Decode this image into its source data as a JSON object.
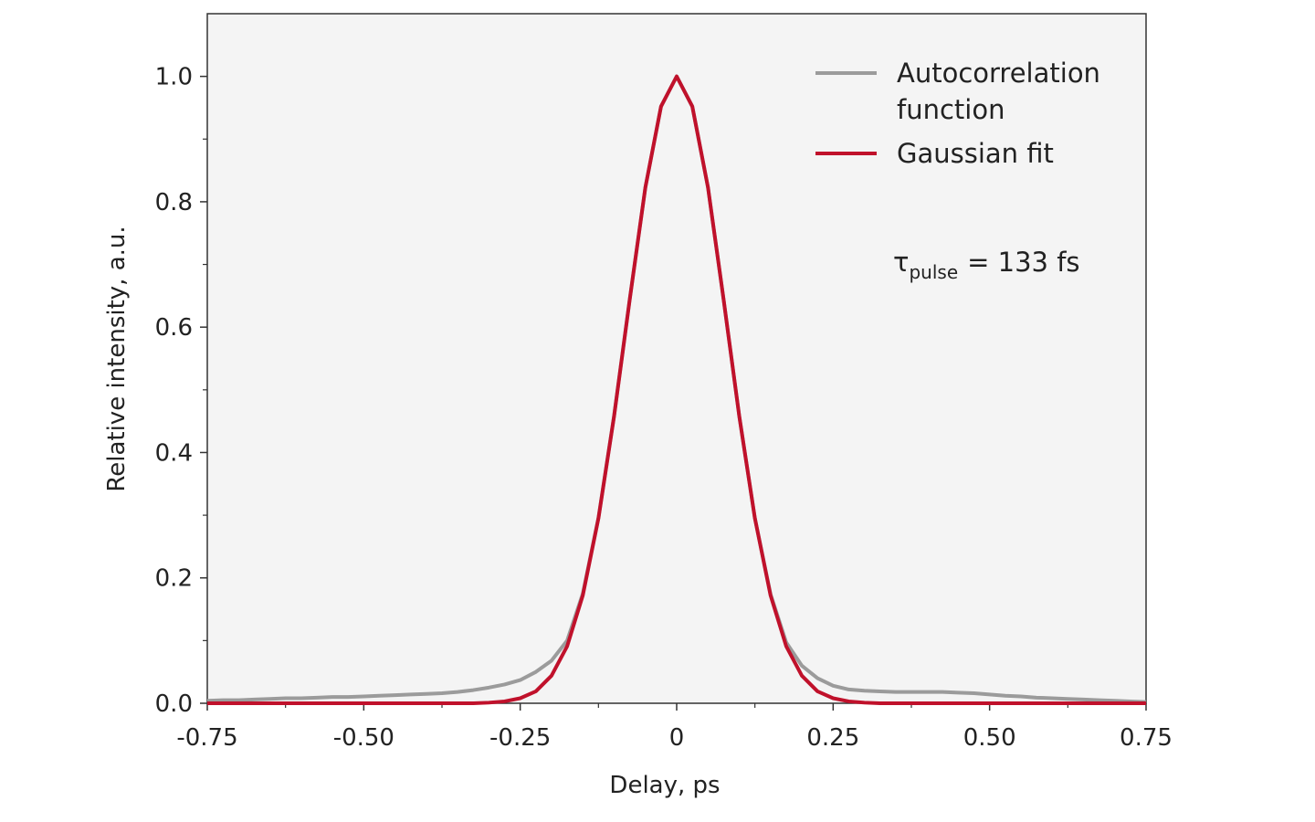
{
  "chart_data": {
    "type": "line",
    "xlabel": "Delay, ps",
    "ylabel": "Relative intensity, a.u.",
    "x": [
      -0.75,
      -0.725,
      -0.7,
      -0.675,
      -0.65,
      -0.625,
      -0.6,
      -0.575,
      -0.55,
      -0.525,
      -0.5,
      -0.475,
      -0.45,
      -0.425,
      -0.4,
      -0.375,
      -0.35,
      -0.325,
      -0.3,
      -0.275,
      -0.25,
      -0.225,
      -0.2,
      -0.175,
      -0.15,
      -0.125,
      -0.1,
      -0.075,
      -0.05,
      -0.025,
      0,
      0.025,
      0.05,
      0.075,
      0.1,
      0.125,
      0.15,
      0.175,
      0.2,
      0.225,
      0.25,
      0.275,
      0.3,
      0.325,
      0.35,
      0.375,
      0.4,
      0.425,
      0.45,
      0.475,
      0.5,
      0.525,
      0.55,
      0.575,
      0.6,
      0.625,
      0.65,
      0.675,
      0.7,
      0.725,
      0.75
    ],
    "series": [
      {
        "name": "Autocorrelation function",
        "color": "#9b9b9b",
        "values": [
          0.004,
          0.005,
          0.005,
          0.006,
          0.007,
          0.008,
          0.008,
          0.009,
          0.01,
          0.01,
          0.011,
          0.012,
          0.013,
          0.014,
          0.015,
          0.016,
          0.018,
          0.021,
          0.025,
          0.03,
          0.037,
          0.05,
          0.068,
          0.1,
          0.175,
          0.296,
          0.459,
          0.645,
          0.823,
          0.952,
          1,
          0.952,
          0.823,
          0.644,
          0.458,
          0.295,
          0.174,
          0.097,
          0.06,
          0.04,
          0.028,
          0.022,
          0.02,
          0.019,
          0.018,
          0.018,
          0.018,
          0.018,
          0.017,
          0.016,
          0.014,
          0.012,
          0.011,
          0.009,
          0.008,
          0.007,
          0.006,
          0.005,
          0.004,
          0.003,
          0.002
        ]
      },
      {
        "name": "Gaussian fit",
        "color": "#c0112b",
        "values": [
          0,
          0,
          0,
          0,
          0,
          0,
          0,
          0,
          0,
          0,
          0,
          0,
          0,
          0,
          0,
          0,
          0,
          0,
          0.001,
          0.003,
          0.008,
          0.019,
          0.044,
          0.091,
          0.172,
          0.295,
          0.458,
          0.644,
          0.823,
          0.952,
          1,
          0.952,
          0.823,
          0.644,
          0.458,
          0.295,
          0.172,
          0.091,
          0.044,
          0.019,
          0.008,
          0.003,
          0.001,
          0,
          0,
          0,
          0,
          0,
          0,
          0,
          0,
          0,
          0,
          0,
          0,
          0,
          0,
          0,
          0,
          0,
          0
        ]
      }
    ],
    "annotation": {
      "symbol": "τ",
      "subscript": "pulse",
      "text": "= 133 fs"
    },
    "xlim": [
      -0.75,
      0.75
    ],
    "xticks": [
      -0.75,
      {
        "value": -0.5,
        "label": "-0.50"
      },
      -0.25,
      0,
      0.25,
      {
        "value": 0.5,
        "label": "0.50"
      },
      0.75
    ],
    "xminorticks": [
      -0.625,
      -0.375,
      -0.125,
      0.125,
      0.375,
      0.625
    ],
    "ylim": [
      0,
      1.1
    ],
    "yticks": [
      {
        "value": 0,
        "label": "0.0"
      },
      0.2,
      0.4,
      0.6,
      0.8,
      {
        "value": 1,
        "label": "1.0"
      }
    ],
    "yminorticks": [
      0.1,
      0.3,
      0.5,
      0.7,
      0.9
    ],
    "legend": "upper right"
  }
}
